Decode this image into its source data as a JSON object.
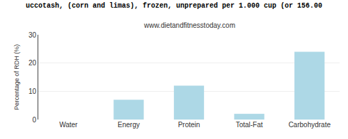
{
  "chart_data": {
    "type": "bar",
    "title": "uccotash, (corn and limas), frozen, unprepared per 1.000 cup (or 156.00",
    "subtitle": "www.dietandfitnesstoday.com",
    "categories": [
      "Water",
      "Energy",
      "Protein",
      "Total-Fat",
      "Carbohydrate"
    ],
    "values": [
      0,
      7,
      12,
      2,
      24
    ],
    "color": "#add8e6",
    "ylabel": "Percentage of RDH (%)",
    "ylim": [
      0,
      30
    ],
    "yticks": [
      0,
      10,
      20,
      30
    ],
    "grid": true
  }
}
